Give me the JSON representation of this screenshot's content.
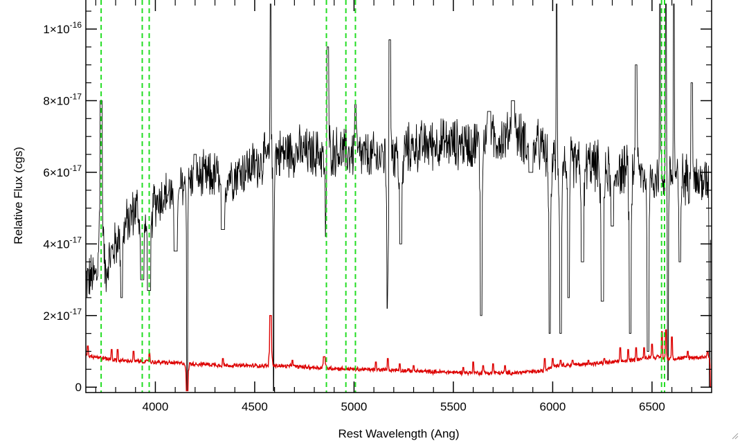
{
  "chart_data": {
    "type": "line",
    "title": "",
    "xlabel": "Rest Wavelength (Ang)",
    "ylabel": "Relative Flux (cgs)",
    "xlim": [
      3650,
      6800
    ],
    "ylim": [
      -1.5e-18,
      1.085e-16
    ],
    "x_ticks": [
      {
        "value": 4000,
        "label": "4000"
      },
      {
        "value": 4500,
        "label": "4500"
      },
      {
        "value": 5000,
        "label": "5000"
      },
      {
        "value": 5500,
        "label": "5500"
      },
      {
        "value": 6000,
        "label": "6000"
      },
      {
        "value": 6500,
        "label": "6500"
      }
    ],
    "y_ticks": [
      {
        "value": 0,
        "mantissa": "0",
        "exponent": ""
      },
      {
        "value": 2e-17,
        "mantissa": "2×10",
        "exponent": "-17"
      },
      {
        "value": 4e-17,
        "mantissa": "4×10",
        "exponent": "-17"
      },
      {
        "value": 6e-17,
        "mantissa": "6×10",
        "exponent": "-17"
      },
      {
        "value": 8e-17,
        "mantissa": "8×10",
        "exponent": "-17"
      },
      {
        "value": 1e-16,
        "mantissa": "1×10",
        "exponent": "-16"
      }
    ],
    "series": [
      {
        "color": "#000000",
        "continuum": [
          [
            3650,
            3e-17
          ],
          [
            3700,
            3.1e-17
          ],
          [
            3750,
            3.3e-17
          ],
          [
            3800,
            4e-17
          ],
          [
            3850,
            4.5e-17
          ],
          [
            3900,
            5e-17
          ],
          [
            3950,
            5.1e-17
          ],
          [
            4000,
            5.2e-17
          ],
          [
            4100,
            5.5e-17
          ],
          [
            4200,
            5.8e-17
          ],
          [
            4300,
            5.9e-17
          ],
          [
            4400,
            5.95e-17
          ],
          [
            4500,
            6.2e-17
          ],
          [
            4600,
            6.5e-17
          ],
          [
            4700,
            6.6e-17
          ],
          [
            4800,
            6.5e-17
          ],
          [
            4900,
            6.6e-17
          ],
          [
            5000,
            6.5e-17
          ],
          [
            5100,
            6.4e-17
          ],
          [
            5200,
            6.5e-17
          ],
          [
            5300,
            6.7e-17
          ],
          [
            5400,
            6.8e-17
          ],
          [
            5500,
            6.8e-17
          ],
          [
            5600,
            6.8e-17
          ],
          [
            5700,
            6.9e-17
          ],
          [
            5800,
            7e-17
          ],
          [
            5900,
            6.9e-17
          ],
          [
            6000,
            6.3e-17
          ],
          [
            6100,
            6.3e-17
          ],
          [
            6200,
            6.2e-17
          ],
          [
            6300,
            6.1e-17
          ],
          [
            6400,
            6e-17
          ],
          [
            6500,
            5.9e-17
          ],
          [
            6600,
            5.9e-17
          ],
          [
            6700,
            5.8e-17
          ],
          [
            6780,
            5.7e-17
          ]
        ],
        "features": [
          [
            3727,
            8e-17,
            3
          ],
          [
            3830,
            2.5e-17,
            2
          ],
          [
            3934,
            3e-17,
            4
          ],
          [
            3968,
            2.7e-17,
            4
          ],
          [
            4102,
            3.8e-17,
            4
          ],
          [
            4160,
            -1e-18,
            1
          ],
          [
            4200,
            6.5e-17,
            3
          ],
          [
            4340,
            4.4e-17,
            4
          ],
          [
            4580,
            1.07e-16,
            1
          ],
          [
            4595,
            -1e-18,
            1
          ],
          [
            4861,
            4.2e-17,
            3
          ],
          [
            4868,
            9.5e-17,
            2
          ],
          [
            5007,
            7.9e-17,
            2
          ],
          [
            5170,
            2.2e-17,
            2
          ],
          [
            5180,
            9.7e-17,
            2
          ],
          [
            5235,
            4e-17,
            3
          ],
          [
            5640,
            2e-17,
            2
          ],
          [
            5680,
            7.7e-17,
            4
          ],
          [
            5800,
            8e-17,
            4
          ],
          [
            5890,
            6e-17,
            5
          ],
          [
            5985,
            1.5e-17,
            2
          ],
          [
            6020,
            1.07e-16,
            1
          ],
          [
            6040,
            1.5e-17,
            2
          ],
          [
            6080,
            2.5e-17,
            2
          ],
          [
            6150,
            3.5e-17,
            3
          ],
          [
            6250,
            2.4e-17,
            3
          ],
          [
            6300,
            4.5e-17,
            3
          ],
          [
            6390,
            1.5e-17,
            2
          ],
          [
            6420,
            9e-17,
            2
          ],
          [
            6480,
            1e-17,
            2
          ],
          [
            6540,
            1.07e-16,
            1
          ],
          [
            6570,
            1.07e-16,
            1
          ],
          [
            6580,
            2e-18,
            1
          ],
          [
            6610,
            1.07e-16,
            1
          ],
          [
            6640,
            3.5e-17,
            2
          ],
          [
            6700,
            8.5e-17,
            2
          ],
          [
            6790,
            0,
            1
          ]
        ],
        "noise": 6e-18
      },
      {
        "color": "#dd0000",
        "continuum": [
          [
            3650,
            9e-18
          ],
          [
            3800,
            7.5e-18
          ],
          [
            4000,
            7e-18
          ],
          [
            4200,
            6.5e-18
          ],
          [
            4400,
            6e-18
          ],
          [
            4600,
            6e-18
          ],
          [
            4800,
            5.5e-18
          ],
          [
            5000,
            5e-18
          ],
          [
            5200,
            4.8e-18
          ],
          [
            5400,
            4.3e-18
          ],
          [
            5600,
            4e-18
          ],
          [
            5800,
            4e-18
          ],
          [
            5950,
            4.5e-18
          ],
          [
            6000,
            6e-18
          ],
          [
            6200,
            6.5e-18
          ],
          [
            6400,
            7.5e-18
          ],
          [
            6500,
            8.5e-18
          ],
          [
            6600,
            8e-18
          ],
          [
            6780,
            8.5e-18
          ]
        ],
        "features": [
          [
            3660,
            1.15e-17,
            1
          ],
          [
            3780,
            1.05e-17,
            1
          ],
          [
            3810,
            1.05e-17,
            1
          ],
          [
            3890,
            1e-17,
            1
          ],
          [
            3970,
            9.5e-18,
            1
          ],
          [
            4160,
            -1e-18,
            2
          ],
          [
            4340,
            8e-18,
            1
          ],
          [
            4580,
            2e-17,
            2
          ],
          [
            4690,
            7.5e-18,
            1
          ],
          [
            4850,
            8.5e-18,
            2
          ],
          [
            5110,
            7e-18,
            1
          ],
          [
            5170,
            8e-18,
            1
          ],
          [
            5230,
            6.5e-18,
            1
          ],
          [
            5300,
            6e-18,
            1
          ],
          [
            5550,
            5.5e-18,
            1
          ],
          [
            5600,
            7e-18,
            1
          ],
          [
            5650,
            6e-18,
            1
          ],
          [
            5700,
            6.5e-18,
            1
          ],
          [
            5760,
            6e-18,
            1
          ],
          [
            5960,
            8e-18,
            1
          ],
          [
            6000,
            8e-18,
            1
          ],
          [
            6040,
            7.5e-18,
            1
          ],
          [
            6100,
            7.5e-18,
            1
          ],
          [
            6180,
            7.5e-18,
            1
          ],
          [
            6260,
            8e-18,
            1
          ],
          [
            6340,
            1.1e-17,
            1
          ],
          [
            6380,
            1.05e-17,
            1
          ],
          [
            6420,
            1.1e-17,
            1
          ],
          [
            6460,
            1.1e-17,
            1
          ],
          [
            6500,
            1.2e-17,
            1
          ],
          [
            6550,
            1.55e-17,
            1
          ],
          [
            6570,
            1.6e-17,
            1
          ],
          [
            6600,
            1.4e-17,
            1
          ],
          [
            6680,
            1e-17,
            1
          ],
          [
            6780,
            1e-17,
            1
          ],
          [
            6795,
            0,
            1
          ]
        ],
        "noise": 5e-19
      }
    ],
    "vlines": {
      "color": "#22dd22",
      "style": "dashed",
      "x": [
        3727,
        3934,
        3969,
        4861,
        4959,
        5007,
        6548,
        6563
      ]
    }
  }
}
